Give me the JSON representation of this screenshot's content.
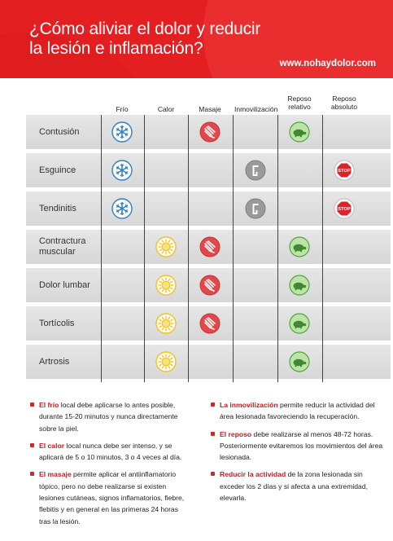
{
  "header": {
    "title_line1": "¿Cómo aliviar el dolor y reducir",
    "title_line2": "la lesión e inflamación?",
    "website": "www.nohaydolor.com"
  },
  "columns": [
    {
      "line1": "Frío",
      "line2": ""
    },
    {
      "line1": "Calor",
      "line2": ""
    },
    {
      "line1": "Masaje",
      "line2": ""
    },
    {
      "line1": "Inmovilización",
      "line2": ""
    },
    {
      "line1": "Reposo",
      "line2": "relativo"
    },
    {
      "line1": "Reposo",
      "line2": "absoluto"
    }
  ],
  "rows": [
    {
      "label_line1": "Contusión",
      "label_line2": "",
      "icons": [
        "snowflake-icon",
        "",
        "massage-hand-icon",
        "",
        "turtle-icon",
        ""
      ]
    },
    {
      "label_line1": "Esguince",
      "label_line2": "",
      "icons": [
        "snowflake-icon",
        "",
        "",
        "bandage-icon",
        "",
        "stop-icon"
      ]
    },
    {
      "label_line1": "Tendinitis",
      "label_line2": "",
      "icons": [
        "snowflake-icon",
        "",
        "",
        "bandage-icon",
        "",
        "stop-icon"
      ]
    },
    {
      "label_line1": "Contractura",
      "label_line2": "muscular",
      "icons": [
        "",
        "sun-icon",
        "massage-hand-icon",
        "",
        "turtle-icon",
        ""
      ]
    },
    {
      "label_line1": "Dolor lumbar",
      "label_line2": "",
      "icons": [
        "",
        "sun-icon",
        "massage-hand-icon",
        "",
        "turtle-icon",
        ""
      ]
    },
    {
      "label_line1": "Tortícolis",
      "label_line2": "",
      "icons": [
        "",
        "sun-icon",
        "massage-hand-icon",
        "",
        "turtle-icon",
        ""
      ]
    },
    {
      "label_line1": "Artrosis",
      "label_line2": "",
      "icons": [
        "",
        "sun-icon",
        "",
        "",
        "turtle-icon",
        ""
      ]
    }
  ],
  "stop_text": "STOP",
  "notes_left": [
    {
      "bold": "El frío",
      "text": " local debe aplicarse lo antes posible, durante 15-20 minutos y nunca directamente sobre la piel."
    },
    {
      "bold": "El calor",
      "text": " local nunca debe ser intenso, y se aplicará de 5 o 10 minutos, 3 o 4 veces al día."
    },
    {
      "bold": "El masaje",
      "text": " permite aplicar el antiinflamatorio tópico, pero no debe realizarse si existen lesiones cutáneas, signos inflamatorios, fiebre, flebitis y en general en las primeras 24 horas tras la lesión."
    }
  ],
  "notes_right": [
    {
      "bold": "La inmovilización",
      "text": " permite reducir la actividad del área lesionada favoreciendo la recuperación."
    },
    {
      "bold": "El reposo",
      "text": " debe realizarse al menos 48-72 horas. Posteriormente evitaremos los movimientos del área lesionada."
    },
    {
      "bold": "Reducir la actividad",
      "text": " de la zona lesionada sin exceder los 2 días y si afecta a una extremidad, elevarla."
    }
  ],
  "colors": {
    "brand_red": "#e41f22",
    "snow_blue": "#2e7fc4",
    "sun_yellow": "#f5c21b",
    "massage_red": "#e2474a",
    "bandage_gray": "#9a9a9a",
    "turtle_green": "#4fa63e",
    "stop_red": "#d9252a"
  }
}
